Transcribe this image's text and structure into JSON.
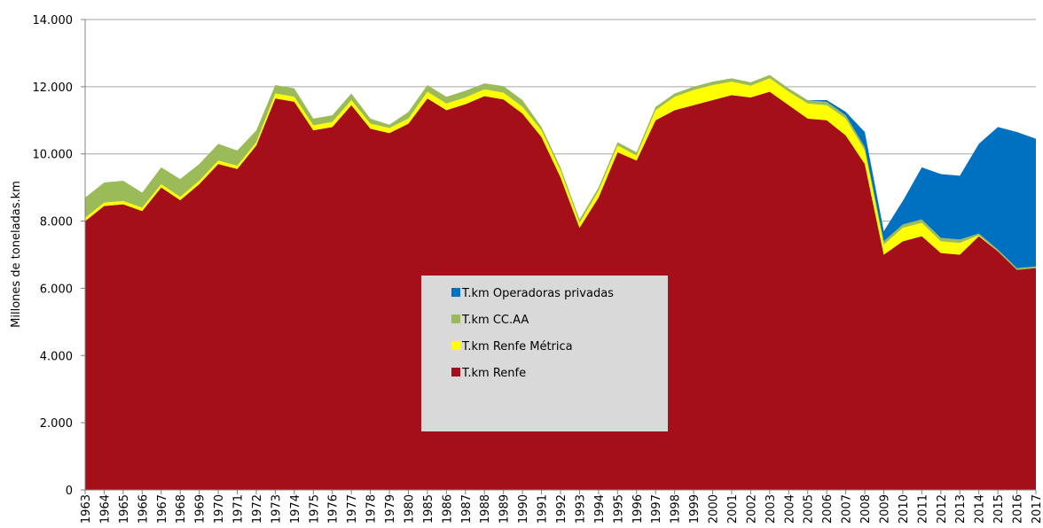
{
  "chart_data": {
    "type": "stacked_area",
    "y_axis_label": "Millones de toneladas.km",
    "categories": [
      "1963",
      "1964",
      "1965",
      "1966",
      "1967",
      "1968",
      "1969",
      "1970",
      "1971",
      "1972",
      "1973",
      "1974",
      "1975",
      "1976",
      "1977",
      "1978",
      "1979",
      "1980",
      "1985",
      "1986",
      "1987",
      "1988",
      "1989",
      "1990",
      "1991",
      "1992",
      "1993",
      "1994",
      "1995",
      "1996",
      "1997",
      "1998",
      "1999",
      "2000",
      "2001",
      "2002",
      "2003",
      "2004",
      "2005",
      "2006",
      "2007",
      "2008",
      "2009",
      "2010",
      "2011",
      "2012",
      "2013",
      "2014",
      "2015",
      "2016",
      "2017"
    ],
    "series": [
      {
        "name": "T.km Renfe",
        "color": "#a50f1a",
        "values": [
          8000,
          8450,
          8500,
          8300,
          9000,
          8620,
          9100,
          9700,
          9550,
          10250,
          11650,
          11550,
          10700,
          10800,
          11450,
          10750,
          10620,
          10900,
          11650,
          11300,
          11480,
          11720,
          11620,
          11200,
          10500,
          9300,
          7800,
          8700,
          10050,
          9800,
          11000,
          11300,
          11450,
          11600,
          11750,
          11680,
          11850,
          11450,
          11050,
          11000,
          10550,
          9700,
          7000,
          7400,
          7550,
          7050,
          7000,
          7550,
          7100,
          6550,
          6600
        ]
      },
      {
        "name": "T.km Renfe Métrica",
        "color": "#ffff00",
        "values": [
          100,
          100,
          100,
          100,
          100,
          100,
          100,
          100,
          100,
          100,
          150,
          150,
          150,
          150,
          150,
          150,
          150,
          150,
          200,
          200,
          200,
          200,
          200,
          200,
          200,
          200,
          150,
          200,
          200,
          150,
          300,
          400,
          450,
          450,
          400,
          350,
          400,
          400,
          450,
          450,
          500,
          400,
          300,
          400,
          400,
          350,
          350,
          30,
          0,
          0,
          0
        ]
      },
      {
        "name": "T.km CC.AA",
        "color": "#9bbb59",
        "values": [
          600,
          600,
          600,
          450,
          500,
          530,
          500,
          500,
          450,
          350,
          250,
          250,
          200,
          200,
          200,
          150,
          100,
          200,
          200,
          200,
          200,
          180,
          200,
          200,
          100,
          100,
          100,
          100,
          100,
          100,
          100,
          100,
          100,
          100,
          100,
          100,
          100,
          100,
          100,
          100,
          100,
          100,
          100,
          100,
          100,
          100,
          100,
          50,
          50,
          50,
          50
        ]
      },
      {
        "name": "T.km Operadoras privadas",
        "color": "#0070c0",
        "values": [
          0,
          0,
          0,
          0,
          0,
          0,
          0,
          0,
          0,
          0,
          0,
          0,
          0,
          0,
          0,
          0,
          0,
          0,
          0,
          0,
          0,
          0,
          0,
          0,
          0,
          0,
          0,
          0,
          0,
          0,
          0,
          0,
          0,
          0,
          0,
          0,
          0,
          0,
          0,
          50,
          100,
          450,
          300,
          700,
          1550,
          1900,
          1900,
          2670,
          3650,
          4050,
          3800
        ]
      }
    ],
    "ylim": [
      0,
      14000
    ],
    "yticks": [
      0,
      {
        "value": 2000,
        "label": "2.000"
      },
      {
        "value": 4000,
        "label": "4.000"
      },
      {
        "value": 6000,
        "label": "6.000"
      },
      {
        "value": 8000,
        "label": "8.000"
      },
      {
        "value": 10000,
        "label": "10.000"
      },
      {
        "value": 12000,
        "label": "12.000"
      },
      {
        "value": 14000,
        "label": "14.000"
      }
    ],
    "grid": true,
    "legend_position": "center"
  }
}
